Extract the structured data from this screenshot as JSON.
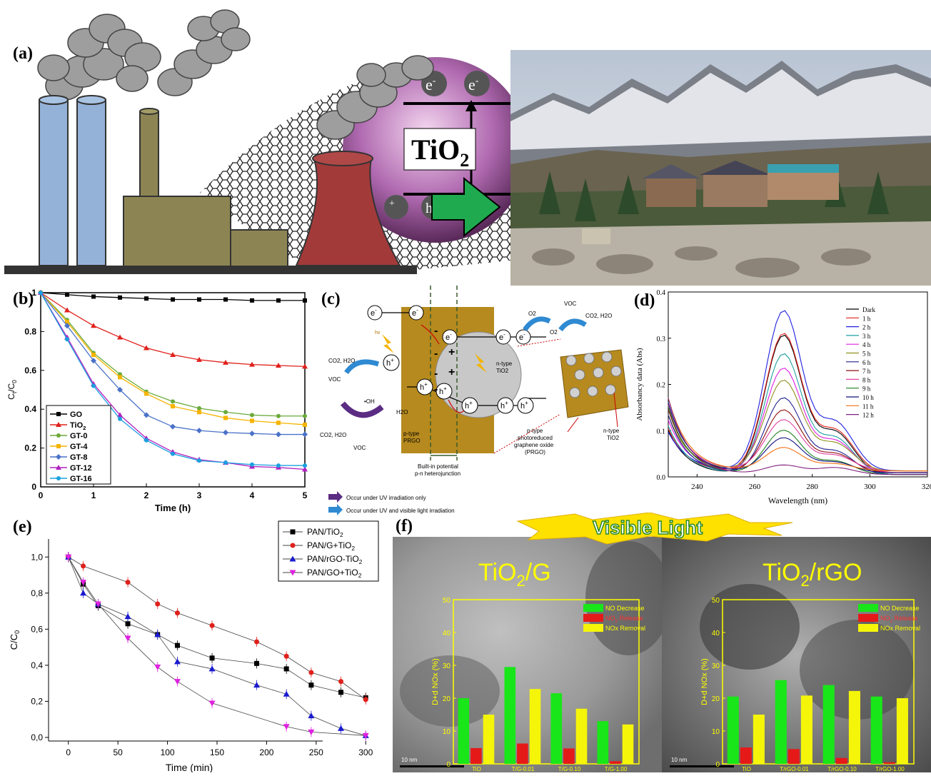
{
  "panels": {
    "a": {
      "label": "(a)",
      "sphere_text_main": "TiO",
      "sphere_text_sub": "2",
      "electron_label": "e",
      "electron_sup": "-",
      "hole_label": "h",
      "hole_sup": "+"
    },
    "b": {
      "label": "(b)"
    },
    "c": {
      "label": "(c)",
      "e_label": "e",
      "e_sup": "-",
      "h_label": "h",
      "h_sup": "+",
      "hv": "hv",
      "voc": "VOC",
      "co2_h2o": "CO2, H2O",
      "o2": "O2",
      "o2_minus": "O2",
      "oh": "•OH",
      "h2o": "H2O",
      "p_type": "p-type",
      "prgo": "PRGO",
      "n_type": "n-type",
      "tio2": "TiO2",
      "builtin_1": "Built-in potential",
      "builtin_2": "p-n heterojunction",
      "ptype_1": "p-type",
      "ptype_2": "photoreduced",
      "ptype_3": "graphene oxide",
      "ptype_4": "(PRGO)",
      "ntype2_1": "n-type",
      "ntype2_2": "TiO2",
      "legend_uv": "Occur under UV irradiation only",
      "legend_uvvis": "Occur under UV and visible light irradiation",
      "purple": "#5b2c83",
      "blue": "#2f8ad2",
      "brown": "#b68a1e"
    },
    "d": {
      "label": "(d)"
    },
    "e": {
      "label": "(e)"
    },
    "f": {
      "label": "(f)",
      "banner": "Visible Light",
      "left_title_main": "TiO",
      "left_title_sub": "2",
      "left_title_tail": "/G",
      "right_title_main": "TiO",
      "right_title_sub": "2",
      "right_title_tail": "/rGO",
      "scale": "10 nm"
    }
  },
  "chart_data": [
    {
      "id": "b",
      "type": "line",
      "xlabel": "Time (h)",
      "ylabel": "Ct/C0",
      "xlim": [
        0,
        5
      ],
      "ylim": [
        0,
        1
      ],
      "xticks": [
        0,
        1,
        2,
        3,
        4,
        5
      ],
      "yticks": [
        0,
        0.2,
        0.4,
        0.6,
        0.8,
        1
      ],
      "ytick_labels": [
        "0",
        "0.2",
        "0.4",
        "0.6",
        "0.8",
        "1"
      ],
      "legend_position": "bottom-left",
      "x": [
        0,
        0.5,
        1,
        1.5,
        2,
        2.5,
        3,
        3.5,
        4,
        4.5,
        5
      ],
      "series": [
        {
          "name": "GO",
          "color": "#000000",
          "marker": "square",
          "values": [
            1,
            0.99,
            0.98,
            0.975,
            0.97,
            0.965,
            0.965,
            0.965,
            0.96,
            0.96,
            0.96
          ]
        },
        {
          "name": "TiO2",
          "color": "#e0201b",
          "marker": "triangle",
          "values": [
            1,
            0.91,
            0.83,
            0.77,
            0.715,
            0.68,
            0.655,
            0.64,
            0.63,
            0.625,
            0.62
          ]
        },
        {
          "name": "GT-0",
          "color": "#6aaa3a",
          "marker": "circle",
          "values": [
            1,
            0.86,
            0.69,
            0.58,
            0.49,
            0.44,
            0.405,
            0.385,
            0.37,
            0.365,
            0.365
          ]
        },
        {
          "name": "GT-4",
          "color": "#f5b400",
          "marker": "square",
          "values": [
            1,
            0.85,
            0.68,
            0.565,
            0.48,
            0.415,
            0.385,
            0.355,
            0.34,
            0.33,
            0.32
          ]
        },
        {
          "name": "GT-8",
          "color": "#4a72c8",
          "marker": "diamond",
          "values": [
            1,
            0.83,
            0.65,
            0.5,
            0.37,
            0.31,
            0.29,
            0.28,
            0.275,
            0.27,
            0.27
          ]
        },
        {
          "name": "GT-12",
          "color": "#b020c0",
          "marker": "triangle",
          "values": [
            1,
            0.77,
            0.53,
            0.37,
            0.25,
            0.18,
            0.14,
            0.125,
            0.105,
            0.1,
            0.09
          ]
        },
        {
          "name": "GT-16",
          "color": "#1aa0e0",
          "marker": "circle",
          "values": [
            1,
            0.76,
            0.52,
            0.35,
            0.24,
            0.17,
            0.135,
            0.125,
            0.115,
            0.11,
            0.11
          ]
        }
      ]
    },
    {
      "id": "d",
      "type": "line",
      "xlabel": "Wavelength (nm)",
      "ylabel": "Absorbancy data (Abs)",
      "xlim": [
        230,
        320
      ],
      "ylim": [
        0,
        0.4
      ],
      "xticks": [
        240,
        260,
        280,
        300,
        320
      ],
      "yticks": [
        0,
        0.1,
        0.2,
        0.3,
        0.4
      ],
      "ytick_labels": [
        "0.0",
        "0.1",
        "0.2",
        "0.3",
        "0.4"
      ],
      "legend_position": "top-right",
      "series": [
        {
          "name": "Dark",
          "color": "#000000",
          "peak": 0.3
        },
        {
          "name": "1 h",
          "color": "#e0201b",
          "peak": 0.3
        },
        {
          "name": "2 h",
          "color": "#2020e0",
          "peak": 0.345
        },
        {
          "name": "3 h",
          "color": "#20a0a0",
          "peak": 0.26
        },
        {
          "name": "4 h",
          "color": "#e020e0",
          "peak": 0.225
        },
        {
          "name": "5 h",
          "color": "#909020",
          "peak": 0.195
        },
        {
          "name": "6 h",
          "color": "#202090",
          "peak": 0.165
        },
        {
          "name": "7 h",
          "color": "#901010",
          "peak": 0.135
        },
        {
          "name": "8 h",
          "color": "#e040a0",
          "peak": 0.11
        },
        {
          "name": "9 h",
          "color": "#208020",
          "peak": 0.095
        },
        {
          "name": "10 h",
          "color": "#101080",
          "peak": 0.075
        },
        {
          "name": "11 h",
          "color": "#f07010",
          "peak": 0.05
        },
        {
          "name": "12 h",
          "color": "#802080",
          "peak": 0.02
        }
      ]
    },
    {
      "id": "e",
      "type": "line",
      "xlabel": "Time (min)",
      "ylabel": "C/C0",
      "xlim": [
        -20,
        320
      ],
      "ylim": [
        -0.02,
        1.1
      ],
      "xticks": [
        0,
        50,
        100,
        150,
        200,
        250,
        300
      ],
      "yticks": [
        0,
        0.2,
        0.4,
        0.6,
        0.8,
        1.0
      ],
      "ytick_labels": [
        "0,0",
        "0,2",
        "0,4",
        "0,6",
        "0,8",
        "1,0"
      ],
      "legend_position": "top-right",
      "series": [
        {
          "name": "PAN/TiO2",
          "color": "#000000",
          "marker": "square",
          "x": [
            0,
            15,
            30,
            60,
            90,
            110,
            145,
            190,
            220,
            245,
            275,
            300
          ],
          "values": [
            1,
            0.85,
            0.73,
            0.63,
            0.57,
            0.51,
            0.44,
            0.41,
            0.38,
            0.29,
            0.25,
            0.22
          ]
        },
        {
          "name": "PAN/G+TiO2",
          "color": "#e0201b",
          "marker": "circle",
          "x": [
            0,
            15,
            60,
            90,
            110,
            145,
            190,
            220,
            245,
            275,
            300
          ],
          "values": [
            1,
            0.95,
            0.86,
            0.74,
            0.69,
            0.62,
            0.53,
            0.45,
            0.36,
            0.31,
            0.21
          ]
        },
        {
          "name": "PAN/rGO-TiO2",
          "color": "#1a1ad0",
          "marker": "triangle",
          "x": [
            0,
            15,
            30,
            60,
            90,
            110,
            145,
            190,
            220,
            245,
            275,
            300
          ],
          "values": [
            1,
            0.8,
            0.74,
            0.67,
            0.57,
            0.42,
            0.38,
            0.29,
            0.24,
            0.12,
            0.05,
            0.01
          ]
        },
        {
          "name": "PAN/GO+TiO2",
          "color": "#e020e0",
          "marker": "tri-down",
          "x": [
            0,
            15,
            30,
            60,
            90,
            110,
            145,
            220,
            245,
            300
          ],
          "values": [
            1,
            0.86,
            0.74,
            0.55,
            0.39,
            0.31,
            0.19,
            0.06,
            0.03,
            0.01
          ]
        }
      ]
    },
    {
      "id": "f-left",
      "type": "bar",
      "ylabel": "D+d NOx (%)",
      "ylim": [
        0,
        50
      ],
      "yticks": [
        0,
        10,
        20,
        30,
        40,
        50
      ],
      "legend_position": "top-right",
      "categories": [
        "TiO",
        "T/G-0.01",
        "T/G-0.10",
        "T/G-1.00"
      ],
      "series": [
        {
          "name": "NO Decrease",
          "color": "#19e619",
          "values": [
            20,
            29.5,
            21.5,
            13
          ]
        },
        {
          "name": "NO2 Release",
          "color": "#e61919",
          "values": [
            4.8,
            6.2,
            4.7,
            0.8
          ]
        },
        {
          "name": "NOx Removal",
          "color": "#f5f50a",
          "values": [
            15,
            22.8,
            16.8,
            12
          ]
        }
      ]
    },
    {
      "id": "f-right",
      "type": "bar",
      "ylabel": "D+d NOx (%)",
      "ylim": [
        0,
        50
      ],
      "yticks": [
        0,
        10,
        20,
        30,
        40,
        50
      ],
      "legend_position": "top-right",
      "categories": [
        "TiO",
        "T/rGO-0.01",
        "T/rGO-0.10",
        "T/rGO-1.00"
      ],
      "series": [
        {
          "name": "NO Decrease",
          "color": "#19e619",
          "values": [
            20.5,
            25.5,
            24,
            20.5
          ]
        },
        {
          "name": "NO2 Release",
          "color": "#e61919",
          "values": [
            5,
            4.5,
            1.8,
            0.5
          ]
        },
        {
          "name": "NOx Removal",
          "color": "#f5f50a",
          "values": [
            15,
            20.8,
            22.2,
            20
          ]
        }
      ]
    }
  ]
}
